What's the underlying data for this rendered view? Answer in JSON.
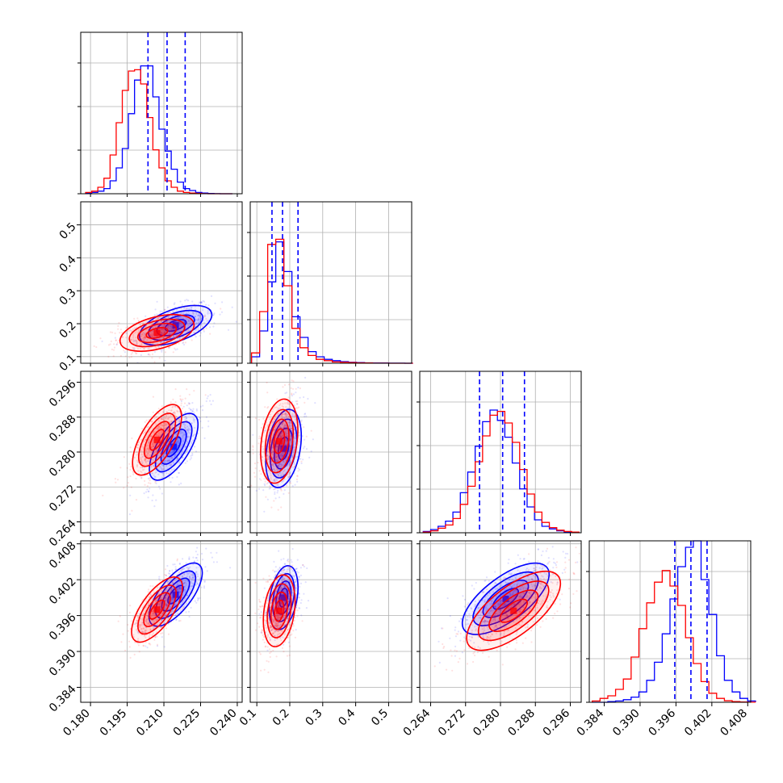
{
  "chart_data": {
    "type": "corner",
    "title": "",
    "series": [
      {
        "name": "",
        "color": "#0000ff"
      },
      {
        "name": "",
        "color": "#ff0000"
      }
    ],
    "grid": true,
    "parameters": [
      {
        "index": 0,
        "range": [
          0.176,
          0.242
        ],
        "ticks": [
          "0.180",
          "0.195",
          "0.210",
          "0.225",
          "0.240"
        ],
        "tick_values": [
          0.18,
          0.195,
          0.21,
          0.225,
          0.24
        ]
      },
      {
        "index": 1,
        "range": [
          0.08,
          0.57
        ],
        "ticks": [
          "0.1",
          "0.2",
          "0.3",
          "0.4",
          "0.5"
        ],
        "tick_values": [
          0.1,
          0.2,
          0.3,
          0.4,
          0.5
        ]
      },
      {
        "index": 2,
        "range": [
          0.2615,
          0.2985
        ],
        "ticks": [
          "0.264",
          "0.272",
          "0.280",
          "0.288",
          "0.296"
        ],
        "tick_values": [
          0.264,
          0.272,
          0.28,
          0.288,
          0.296
        ]
      },
      {
        "index": 3,
        "range": [
          0.3815,
          0.4085
        ],
        "ticks": [
          "0.384",
          "0.390",
          "0.396",
          "0.402",
          "0.408"
        ],
        "tick_values": [
          0.384,
          0.39,
          0.396,
          0.402,
          0.408
        ]
      }
    ],
    "quantiles_blue": [
      [
        0.2035,
        0.2113,
        0.2187
      ],
      [
        0.146,
        0.178,
        0.225
      ],
      [
        0.2752,
        0.2805,
        0.2855
      ],
      [
        0.3958,
        0.3985,
        0.4012
      ]
    ],
    "hist_blue": [
      {
        "x0": 0.178,
        "bw": 0.0025,
        "y": [
          0.005,
          0.01,
          0.02,
          0.04,
          0.1,
          0.2,
          0.35,
          0.62,
          0.88,
          0.99,
          0.99,
          0.75,
          0.5,
          0.33,
          0.19,
          0.09,
          0.04,
          0.025,
          0.01,
          0.005,
          0.002,
          0.001,
          0.0,
          0.0
        ]
      },
      {
        "x0": 0.084,
        "bw": 0.0245,
        "y": [
          0.05,
          0.25,
          0.63,
          0.94,
          0.71,
          0.36,
          0.2,
          0.09,
          0.05,
          0.03,
          0.02,
          0.012,
          0.008,
          0.005,
          0.003,
          0.002,
          0.002,
          0.001,
          0.001,
          0.0
        ]
      },
      {
        "x0": 0.2623,
        "bw": 0.0017,
        "y": [
          0.01,
          0.025,
          0.05,
          0.09,
          0.16,
          0.31,
          0.47,
          0.67,
          0.86,
          0.95,
          0.87,
          0.74,
          0.54,
          0.34,
          0.2,
          0.1,
          0.05,
          0.03,
          0.015,
          0.005,
          0.002
        ]
      },
      {
        "x0": 0.382,
        "bw": 0.0013,
        "y": [
          0.0,
          0.0,
          0.005,
          0.01,
          0.02,
          0.04,
          0.08,
          0.17,
          0.31,
          0.53,
          0.8,
          1.05,
          1.2,
          1.25,
          0.95,
          0.68,
          0.36,
          0.17,
          0.08,
          0.03,
          0.01
        ]
      }
    ],
    "hist_red": [
      {
        "x0": 0.178,
        "bw": 0.0025,
        "y": [
          0.01,
          0.02,
          0.05,
          0.12,
          0.3,
          0.55,
          0.8,
          0.95,
          0.96,
          0.85,
          0.59,
          0.34,
          0.2,
          0.1,
          0.05,
          0.02,
          0.01,
          0.005,
          0.003,
          0.001,
          0.0,
          0.0,
          0.0,
          0.0
        ]
      },
      {
        "x0": 0.084,
        "bw": 0.0245,
        "y": [
          0.08,
          0.4,
          0.92,
          0.96,
          0.6,
          0.27,
          0.12,
          0.06,
          0.03,
          0.02,
          0.01,
          0.008,
          0.005,
          0.003,
          0.002,
          0.001,
          0.001,
          0.0,
          0.0,
          0.0
        ]
      },
      {
        "x0": 0.2623,
        "bw": 0.0017,
        "y": [
          0.005,
          0.015,
          0.035,
          0.06,
          0.11,
          0.22,
          0.36,
          0.55,
          0.75,
          0.91,
          0.94,
          0.85,
          0.7,
          0.49,
          0.3,
          0.16,
          0.08,
          0.04,
          0.02,
          0.01,
          0.005
        ]
      },
      {
        "x0": 0.382,
        "bw": 0.0013,
        "y": [
          0.01,
          0.03,
          0.05,
          0.1,
          0.18,
          0.35,
          0.57,
          0.77,
          0.93,
          1.02,
          0.9,
          0.75,
          0.5,
          0.3,
          0.16,
          0.07,
          0.03,
          0.012,
          0.005,
          0.002,
          0.001
        ]
      }
    ],
    "contours_blue": [
      {
        "pair": [
          0,
          1
        ],
        "center": [
          0.2148,
          0.195
        ],
        "sd": [
          0.0072,
          0.038
        ],
        "angle_deg": 20
      },
      {
        "pair": [
          0,
          2
        ],
        "center": [
          0.214,
          0.2812
        ],
        "sd": [
          0.0072,
          0.0036
        ],
        "angle_deg": 58
      },
      {
        "pair": [
          1,
          2
        ],
        "center": [
          0.181,
          0.2808
        ],
        "sd": [
          0.028,
          0.0042
        ],
        "angle_deg": 80
      },
      {
        "pair": [
          0,
          3
        ],
        "center": [
          0.2148,
          0.3995
        ],
        "sd": [
          0.0072,
          0.0021
        ],
        "angle_deg": 52
      },
      {
        "pair": [
          1,
          3
        ],
        "center": [
          0.181,
          0.399
        ],
        "sd": [
          0.028,
          0.0025
        ],
        "angle_deg": 80
      },
      {
        "pair": [
          2,
          3
        ],
        "center": [
          0.2812,
          0.3988
        ],
        "sd": [
          0.0055,
          0.0008
        ],
        "angle_deg": 37
      }
    ],
    "contours_red": [
      {
        "pair": [
          0,
          1
        ],
        "center": [
          0.2072,
          0.172
        ],
        "sd": [
          0.0072,
          0.032
        ],
        "angle_deg": 15
      },
      {
        "pair": [
          0,
          2
        ],
        "center": [
          0.2072,
          0.2828
        ],
        "sd": [
          0.0075,
          0.004
        ],
        "angle_deg": 60
      },
      {
        "pair": [
          1,
          2
        ],
        "center": [
          0.168,
          0.2825
        ],
        "sd": [
          0.026,
          0.0045
        ],
        "angle_deg": 82
      },
      {
        "pair": [
          0,
          3
        ],
        "center": [
          0.2072,
          0.397
        ],
        "sd": [
          0.0072,
          0.0024
        ],
        "angle_deg": 55
      },
      {
        "pair": [
          1,
          3
        ],
        "center": [
          0.168,
          0.3968
        ],
        "sd": [
          0.026,
          0.0028
        ],
        "angle_deg": 82
      },
      {
        "pair": [
          2,
          3
        ],
        "center": [
          0.283,
          0.3968
        ],
        "sd": [
          0.006,
          0.001
        ],
        "angle_deg": 38
      }
    ]
  }
}
